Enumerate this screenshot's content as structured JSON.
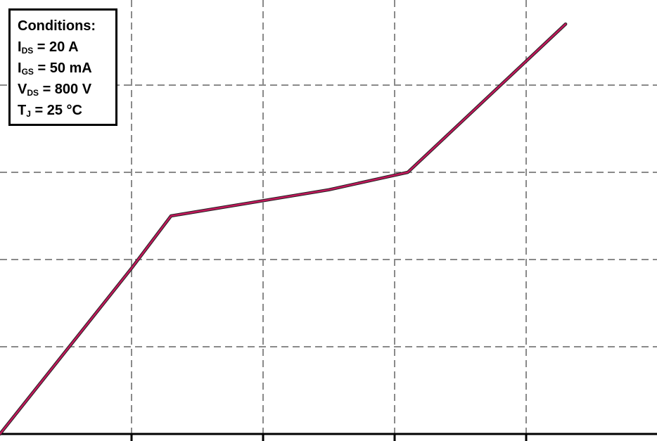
{
  "chart_data": {
    "type": "line",
    "title": "",
    "xlabel": "",
    "ylabel": "",
    "grid": true,
    "xlim": [
      0,
      5
    ],
    "ylim": [
      0,
      5
    ],
    "series": [
      {
        "name": "",
        "color": "#c2185b",
        "x": [
          0,
          1.0,
          1.3,
          2.5,
          3.1,
          4.3
        ],
        "y": [
          0,
          1.9,
          2.5,
          2.8,
          3.0,
          4.7
        ]
      }
    ],
    "annotation": {
      "heading": "Conditions:",
      "lines": [
        {
          "sym": "I",
          "sub": "DS",
          "rest": " = 20 A"
        },
        {
          "sym": "I",
          "sub": "GS",
          "rest": " = 50 mA"
        },
        {
          "sym": "V",
          "sub": "DS",
          "rest": " = 800 V"
        },
        {
          "sym": "T",
          "sub": "J",
          "rest": " = 25 °C"
        }
      ]
    }
  }
}
